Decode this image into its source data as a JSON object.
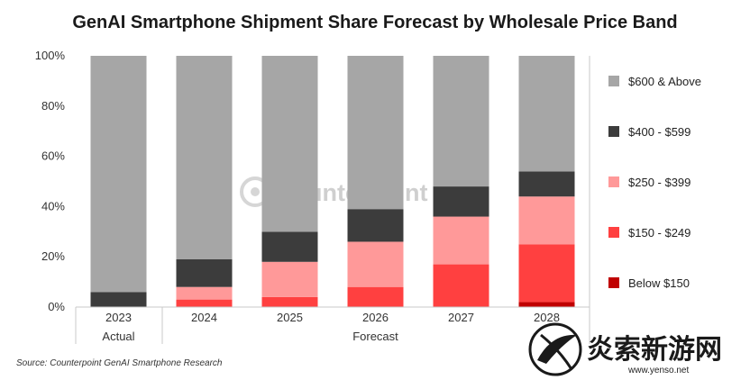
{
  "chart_data": {
    "type": "bar",
    "stacked": true,
    "title": "GenAI Smartphone Shipment Share Forecast by Wholesale Price Band",
    "categories": [
      "2023",
      "2024",
      "2025",
      "2026",
      "2027",
      "2028"
    ],
    "category_groups": [
      {
        "label": "Actual",
        "categories": [
          "2023"
        ]
      },
      {
        "label": "Forecast",
        "categories": [
          "2024",
          "2025",
          "2026",
          "2027",
          "2028"
        ]
      }
    ],
    "ylim": [
      0,
      100
    ],
    "yticks": [
      "0%",
      "20%",
      "40%",
      "60%",
      "80%",
      "100%"
    ],
    "ytick_values": [
      0,
      20,
      40,
      60,
      80,
      100
    ],
    "series": [
      {
        "name": "Below $150",
        "color": "#c00000",
        "values": [
          0,
          0,
          0,
          0,
          0,
          2
        ]
      },
      {
        "name": "$150 - $249",
        "color": "#ff4040",
        "values": [
          0,
          3,
          4,
          8,
          17,
          23
        ]
      },
      {
        "name": "$250 - $399",
        "color": "#ff9999",
        "values": [
          0,
          5,
          14,
          18,
          19,
          19
        ]
      },
      {
        "name": "$400 - $599",
        "color": "#3c3c3c",
        "values": [
          6,
          11,
          12,
          13,
          12,
          10
        ]
      },
      {
        "name": "$600 & Above",
        "color": "#a6a6a6",
        "values": [
          94,
          81,
          70,
          61,
          52,
          46
        ]
      }
    ],
    "legend_order": [
      "$600 & Above",
      "$400 - $599",
      "$250 - $399",
      "$150 - $249",
      "Below $150"
    ],
    "legend_position": "right",
    "source": "Source: Counterpoint GenAI Smartphone Research"
  },
  "watermark": {
    "text": "Counterpoint"
  },
  "site_badge": {
    "text": "炎索新游网",
    "url": "www.yenso.net"
  }
}
